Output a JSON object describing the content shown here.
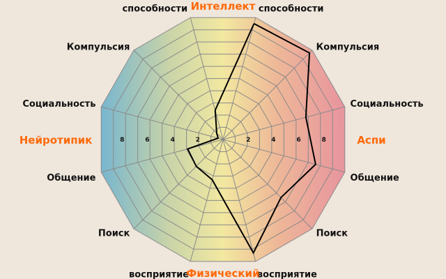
{
  "chart_data": {
    "type": "radar",
    "title": "",
    "rmax": 10,
    "rings": 10,
    "tick_labels": [
      "2",
      "4",
      "6",
      "8"
    ],
    "groups": {
      "top": "Интеллект",
      "bottom": "Физический",
      "left": "Нейротипик",
      "right": "Аспи"
    },
    "axes": [
      "способности",
      "Компульсия",
      "Социальность",
      "Общение",
      "Поиск",
      "восприятие",
      "восприятие",
      "Поиск",
      "Общение",
      "Социальность",
      "Компульсия",
      "способности"
    ],
    "values": [
      9.5,
      9.7,
      6.8,
      7.6,
      6.5,
      9.3,
      3.3,
      3.0,
      2.9,
      0.4,
      0.7,
      2.4
    ],
    "colors": {
      "left": "#78b6cf",
      "center": "#f2e8a0",
      "right": "#e8949e",
      "grid": "#8a8a8a",
      "line": "#000000",
      "group_label": "#ff6a0a",
      "background": "#efe6dc"
    }
  }
}
